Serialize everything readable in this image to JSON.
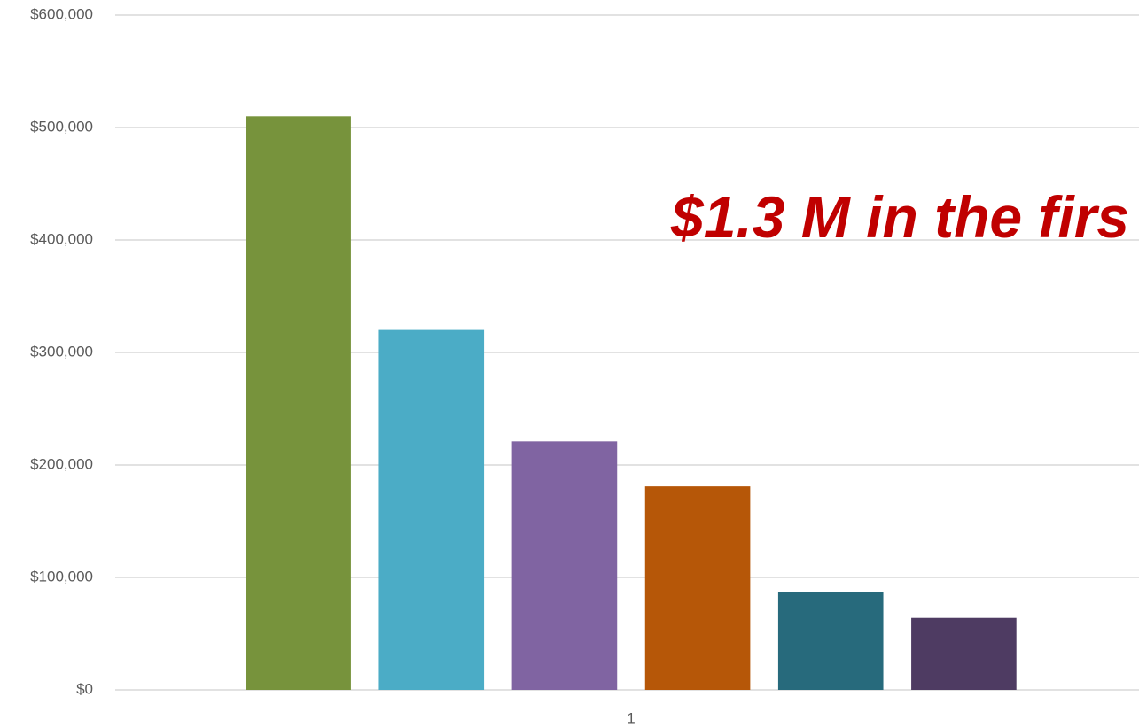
{
  "chart_data": {
    "type": "bar",
    "categories": [
      "1"
    ],
    "series": [
      {
        "color": "#77933c",
        "values": [
          510000
        ]
      },
      {
        "color": "#4bacc6",
        "values": [
          320000
        ]
      },
      {
        "color": "#8064a2",
        "values": [
          221000
        ]
      },
      {
        "color": "#b65708",
        "values": [
          181000
        ]
      },
      {
        "color": "#276a7c",
        "values": [
          87000
        ]
      },
      {
        "color": "#4e3b62",
        "values": [
          64000
        ]
      }
    ],
    "ylim": [
      0,
      600000
    ],
    "yticks": [
      {
        "value": 0,
        "label": "$0"
      },
      {
        "value": 100000,
        "label": "$100,000"
      },
      {
        "value": 200000,
        "label": "$200,000"
      },
      {
        "value": 300000,
        "label": "$300,000"
      },
      {
        "value": 400000,
        "label": "$400,000"
      },
      {
        "value": 500000,
        "label": "$500,000"
      },
      {
        "value": 600000,
        "label": "$600,000"
      }
    ],
    "grid": true,
    "annotation": "$1.3 M in the firs"
  }
}
